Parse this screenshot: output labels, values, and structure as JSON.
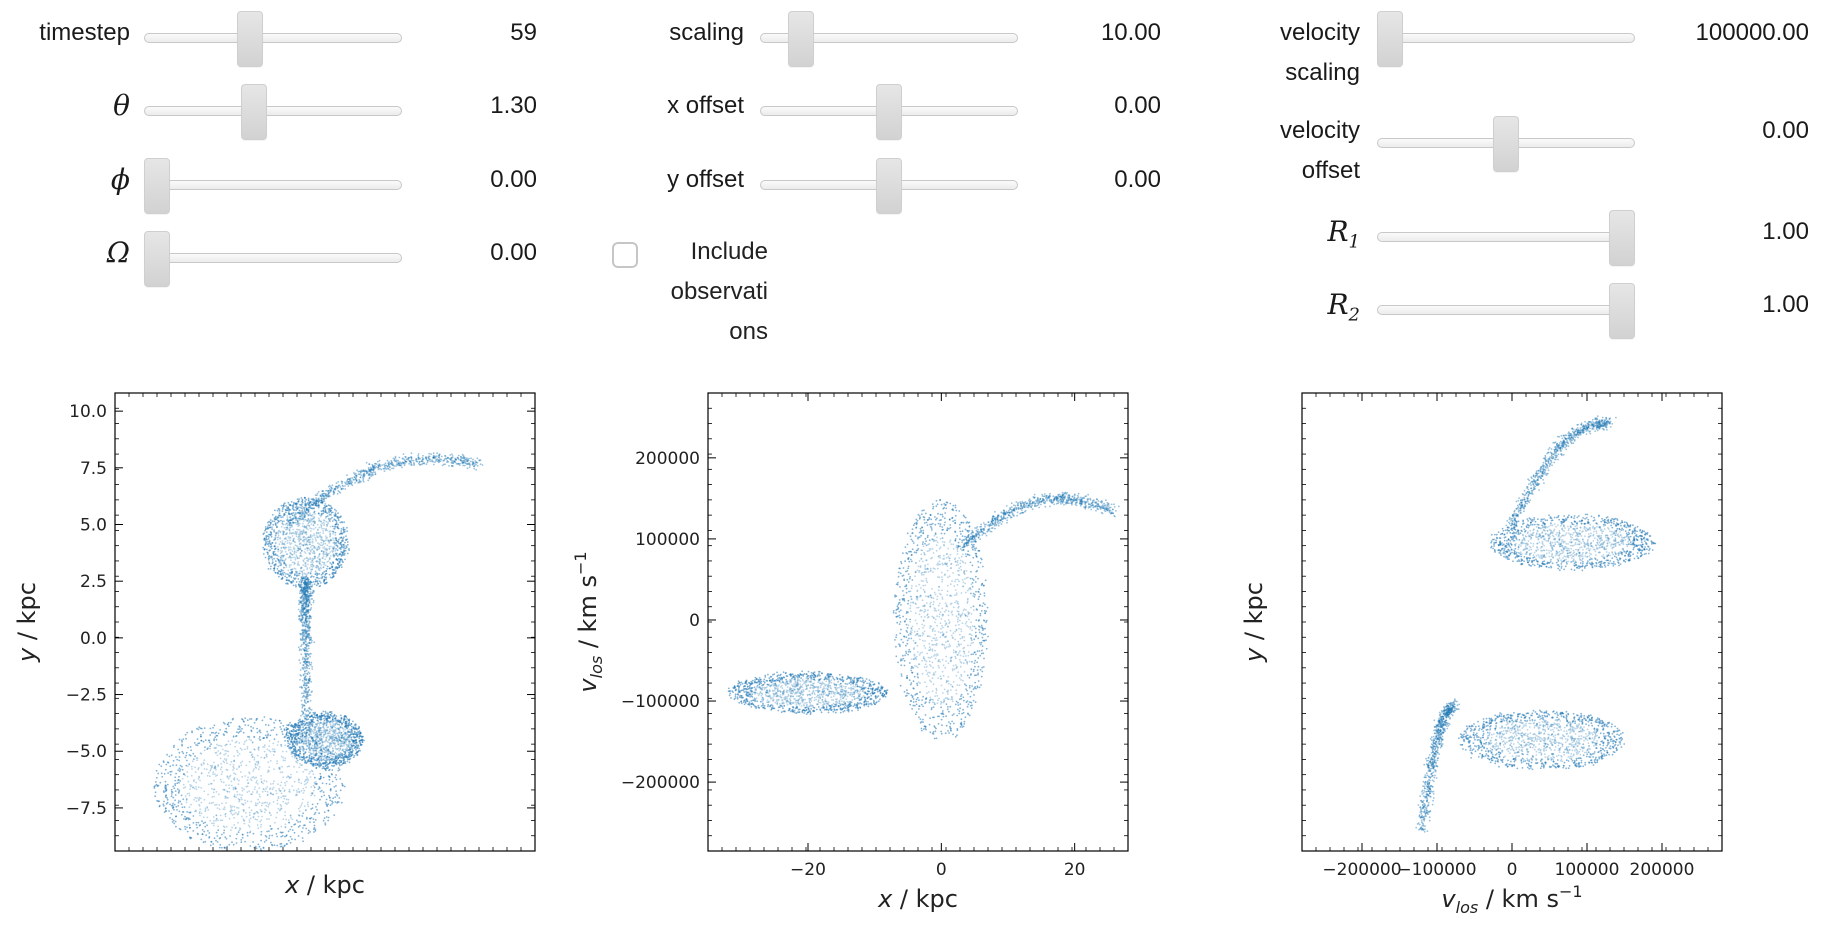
{
  "controls": {
    "col1": [
      {
        "label": "timestep",
        "value": "59",
        "frac": 0.4
      },
      {
        "label": "θ",
        "value": "1.30",
        "frac": 0.42,
        "symbol": true
      },
      {
        "label": "ϕ",
        "value": "0.00",
        "frac": 0.0,
        "symbol": true
      },
      {
        "label": "Ω",
        "value": "0.00",
        "frac": 0.0,
        "symbol": true
      }
    ],
    "col2": [
      {
        "label": "scaling",
        "value": "10.00",
        "frac": 0.12
      },
      {
        "label": "x offset",
        "value": "0.00",
        "frac": 0.5
      },
      {
        "label": "y offset",
        "value": "0.00",
        "frac": 0.5
      }
    ],
    "include_observations": {
      "label_lines": [
        "Include",
        "observati",
        "ons"
      ],
      "checked": false
    },
    "col3": [
      {
        "label_lines": [
          "velocity",
          "scaling"
        ],
        "value": "100000.00",
        "frac": 0.0
      },
      {
        "label_lines": [
          "velocity",
          "offset"
        ],
        "value": "0.00",
        "frac": 0.5
      },
      {
        "label": "R",
        "sub": "1",
        "value": "1.00",
        "frac": 1.0,
        "symbol": true
      },
      {
        "label": "R",
        "sub": "2",
        "value": "1.00",
        "frac": 1.0,
        "symbol": true
      }
    ]
  },
  "plot_color": "#1f77b4",
  "chart_data": [
    {
      "type": "scatter",
      "xlabel": "x / kpc",
      "ylabel": "y / kpc",
      "xlim": [
        -20,
        24
      ],
      "ylim": [
        -9.4,
        10.8
      ],
      "xticks": [],
      "yticks": [
        -7.5,
        -5.0,
        -2.5,
        0.0,
        2.5,
        5.0,
        7.5,
        10.0
      ],
      "ytick_labels": [
        "−7.5",
        "−5.0",
        "−2.5",
        "0.0",
        "2.5",
        "5.0",
        "7.5",
        "10.0"
      ],
      "structures": [
        {
          "name": "upper-galaxy-core",
          "cx": 0,
          "cy": 4.2,
          "rx": 4.5,
          "ry": 2.0
        },
        {
          "name": "upper-tidal-arm",
          "from": [
            -2,
            5
          ],
          "to": [
            18,
            7.7
          ]
        },
        {
          "name": "bridge",
          "from": [
            0,
            2.5
          ],
          "to": [
            0,
            -3.5
          ]
        },
        {
          "name": "lower-galaxy-core",
          "cx": 2,
          "cy": -4.5,
          "rx": 4,
          "ry": 1.2
        },
        {
          "name": "lower-tidal-tail",
          "cx": -6,
          "cy": -6.5,
          "rx": 10,
          "ry": 3
        }
      ]
    },
    {
      "type": "scatter",
      "xlabel": "x / kpc",
      "ylabel": "v_los / km s^-1",
      "xlim": [
        -35,
        28
      ],
      "ylim": [
        -285000,
        280000
      ],
      "xticks": [
        -20,
        0,
        20
      ],
      "xtick_labels": [
        "−20",
        "0",
        "20"
      ],
      "yticks": [
        -200000,
        -100000,
        0,
        100000,
        200000
      ],
      "ytick_labels": [
        "−200000",
        "−100000",
        "0",
        "100000",
        "200000"
      ],
      "structures": [
        {
          "name": "central-disk",
          "cx": 0,
          "cy": 0,
          "rx": 7,
          "ry": 150000
        },
        {
          "name": "right-arm",
          "from": [
            3,
            90000
          ],
          "to": [
            26,
            135000
          ]
        },
        {
          "name": "left-arm",
          "cx": -20,
          "cy": -90000,
          "rx": 12,
          "ry": 25000
        }
      ]
    },
    {
      "type": "scatter",
      "xlabel": "v_los / km s^-1",
      "ylabel": "y / kpc",
      "xlim": [
        -280000,
        280000
      ],
      "ylim": [
        -9.4,
        10.8
      ],
      "xticks": [
        -200000,
        -100000,
        0,
        100000,
        200000
      ],
      "xtick_labels": [
        "−200000",
        "−100000",
        "0",
        "100000",
        "200000"
      ],
      "yticks": [],
      "structures": [
        {
          "name": "upper-ring",
          "cx": 80000,
          "cy": 4.2,
          "rx": 110000,
          "ry": 1.2
        },
        {
          "name": "upper-arm",
          "from": [
            0,
            5
          ],
          "to": [
            130000,
            9.5
          ]
        },
        {
          "name": "lower-ring",
          "cx": 40000,
          "cy": -4.5,
          "rx": 110000,
          "ry": 1.3
        },
        {
          "name": "lower-tail",
          "from": [
            -80000,
            -3
          ],
          "to": [
            -120000,
            -8.5
          ]
        }
      ]
    }
  ]
}
